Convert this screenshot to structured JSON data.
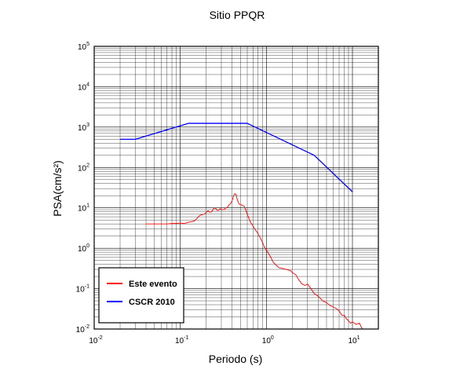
{
  "chart_data": {
    "type": "line",
    "title": "Sitio PPQR",
    "xlabel": "Periodo (s)",
    "ylabel": "PSA(cm/s²)",
    "xscale": "log",
    "yscale": "log",
    "xlim": [
      0.01,
      20
    ],
    "ylim": [
      0.01,
      100000
    ],
    "grid": true,
    "legend_position": "bottom-left",
    "x_tick_labels": [
      {
        "base": "10",
        "exp": "-2"
      },
      {
        "base": "10",
        "exp": "-1"
      },
      {
        "base": "10",
        "exp": "0"
      },
      {
        "base": "10",
        "exp": "1"
      }
    ],
    "y_tick_labels": [
      {
        "base": "10",
        "exp": "-2"
      },
      {
        "base": "10",
        "exp": "-1"
      },
      {
        "base": "10",
        "exp": "0"
      },
      {
        "base": "10",
        "exp": "1"
      },
      {
        "base": "10",
        "exp": "2"
      },
      {
        "base": "10",
        "exp": "3"
      },
      {
        "base": "10",
        "exp": "4"
      },
      {
        "base": "10",
        "exp": "5"
      }
    ],
    "series": [
      {
        "name": "Este evento",
        "color": "#ff0000",
        "x": [
          0.04,
          0.05,
          0.06,
          0.07,
          0.08,
          0.09,
          0.1,
          0.11,
          0.12,
          0.13,
          0.14,
          0.15,
          0.16,
          0.17,
          0.18,
          0.19,
          0.2,
          0.21,
          0.22,
          0.23,
          0.24,
          0.25,
          0.26,
          0.27,
          0.28,
          0.29,
          0.3,
          0.31,
          0.32,
          0.33,
          0.34,
          0.35,
          0.36,
          0.37,
          0.38,
          0.39,
          0.4,
          0.41,
          0.42,
          0.43,
          0.44,
          0.45,
          0.46,
          0.47,
          0.48,
          0.5,
          0.52,
          0.55,
          0.58,
          0.6,
          0.65,
          0.7,
          0.75,
          0.8,
          0.85,
          0.9,
          0.95,
          1.0,
          1.1,
          1.2,
          1.3,
          1.4,
          1.5,
          1.7,
          1.9,
          2.0,
          2.2,
          2.4,
          2.6,
          2.8,
          3.0,
          3.3,
          3.6,
          4.0,
          4.5,
          5.0,
          5.5,
          6.0,
          6.5,
          7.0,
          7.5,
          8.0,
          8.5,
          9.0,
          9.5,
          10.0,
          11.0,
          12.0,
          13.0
        ],
        "y": [
          4.0,
          4.0,
          4.0,
          4.0,
          4.1,
          4.1,
          4.2,
          4.1,
          4.3,
          4.5,
          4.6,
          5.0,
          5.8,
          6.6,
          6.8,
          7.0,
          7.8,
          8.5,
          7.8,
          8.0,
          9.2,
          10.0,
          9.5,
          8.6,
          8.8,
          9.5,
          9.2,
          9.0,
          9.0,
          9.5,
          10.0,
          10.2,
          11.0,
          12.0,
          12.5,
          13.5,
          15.0,
          18.0,
          21.0,
          22.5,
          22.0,
          19.0,
          16.0,
          14.0,
          12.5,
          12.0,
          11.8,
          11.0,
          8.5,
          7.0,
          4.5,
          3.5,
          2.8,
          2.3,
          1.8,
          1.4,
          1.05,
          0.9,
          0.65,
          0.45,
          0.38,
          0.33,
          0.32,
          0.3,
          0.28,
          0.25,
          0.22,
          0.16,
          0.13,
          0.12,
          0.13,
          0.1,
          0.075,
          0.065,
          0.05,
          0.045,
          0.038,
          0.035,
          0.032,
          0.028,
          0.022,
          0.022,
          0.018,
          0.016,
          0.014,
          0.015,
          0.013,
          0.014,
          0.01
        ]
      },
      {
        "name": "CSCR 2010",
        "color": "#0000ff",
        "x": [
          0.02,
          0.03,
          0.125,
          0.6,
          3.6,
          10.0
        ],
        "y": [
          500,
          500,
          1240,
          1240,
          200,
          25
        ]
      }
    ]
  }
}
